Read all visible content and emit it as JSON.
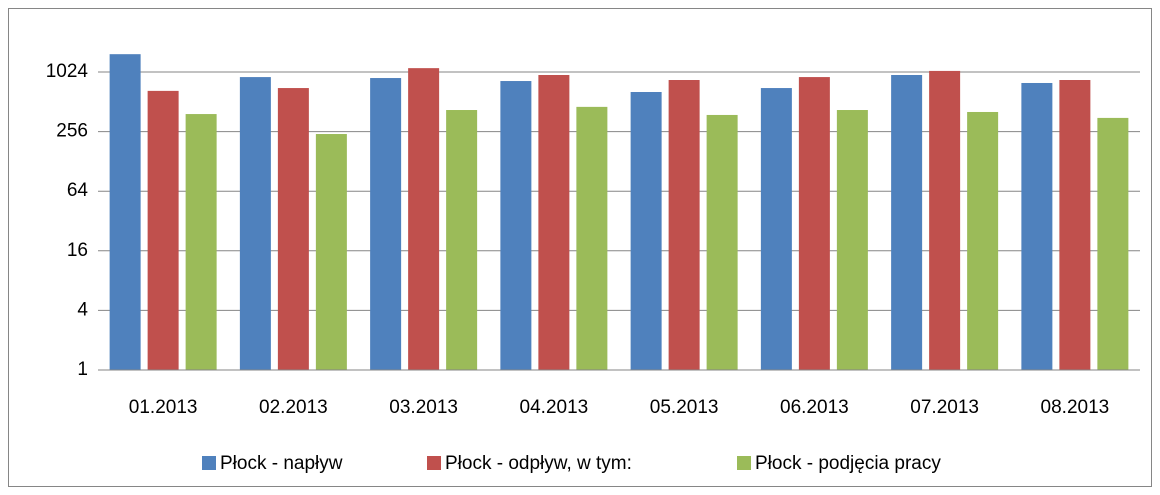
{
  "chart_data": {
    "type": "bar",
    "categories": [
      "01.2013",
      "02.2013",
      "03.2013",
      "04.2013",
      "05.2013",
      "06.2013",
      "07.2013",
      "08.2013"
    ],
    "series": [
      {
        "name": "Płock - napływ",
        "color": "#4f81bd",
        "values": [
          1550,
          910,
          890,
          830,
          643,
          705,
          955,
          793
        ]
      },
      {
        "name": "Płock - odpływ, w tym:",
        "color": "#c0504d",
        "values": [
          660,
          705,
          1120,
          955,
          850,
          910,
          1050,
          850
        ]
      },
      {
        "name": "Płock - podjęcia pracy",
        "color": "#9bbb59",
        "values": [
          385,
          242,
          423,
          455,
          377,
          423,
          404,
          352
        ]
      }
    ],
    "ylim": [
      1,
      2048
    ],
    "yticks": [
      1,
      4,
      16,
      64,
      256,
      1024
    ],
    "log_scale": true,
    "log_base": 2,
    "grid": true,
    "legend": "bottom"
  }
}
